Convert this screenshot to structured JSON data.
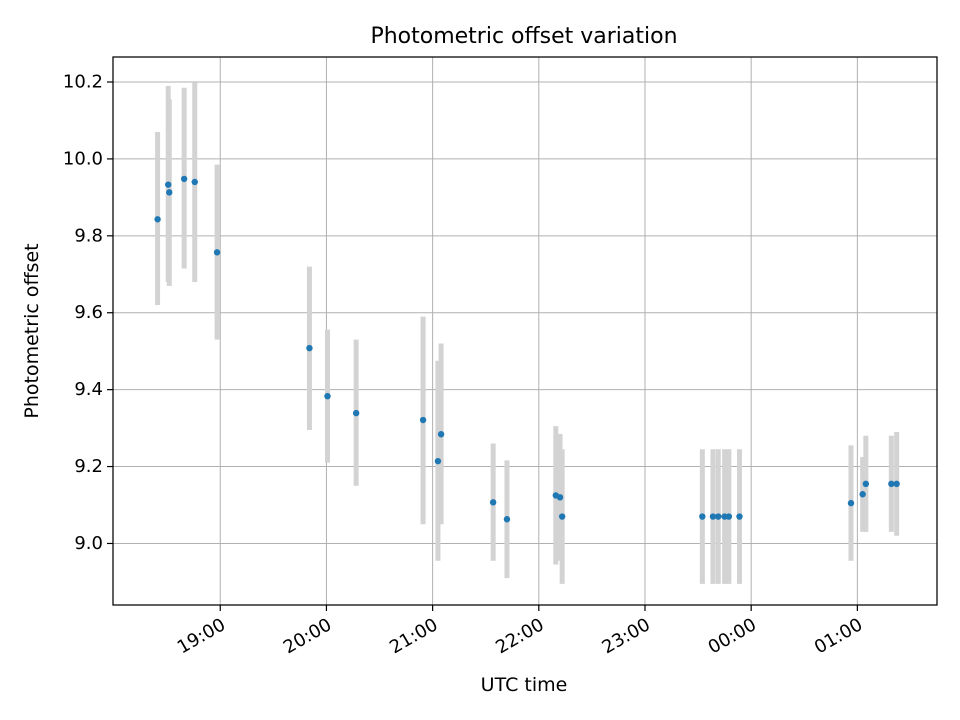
{
  "chart_data": {
    "type": "scatter",
    "title": "Photometric offset variation",
    "xlabel": "UTC time",
    "ylabel": "Photometric offset",
    "grid": true,
    "legend": "none",
    "x_unit": "UTC time of night (hours past 00:00 on the first day; values above 24 fall on the next day)",
    "xlim": [
      17.99,
      25.75
    ],
    "ylim": [
      8.84,
      10.265
    ],
    "x_ticks": [
      19,
      20,
      21,
      22,
      23,
      24,
      25
    ],
    "x_tick_labels": [
      "19:00",
      "20:00",
      "21:00",
      "22:00",
      "23:00",
      "00:00",
      "01:00"
    ],
    "y_ticks": [
      9.0,
      9.2,
      9.4,
      9.6,
      9.8,
      10.0,
      10.2
    ],
    "y_tick_labels": [
      "9.0",
      "9.2",
      "9.4",
      "9.6",
      "9.8",
      "10.0",
      "10.2"
    ],
    "colors": {
      "point": "#1f77b4",
      "errorbar": "#d3d3d3",
      "grid": "#b0b0b0"
    },
    "series": [
      {
        "points": [
          {
            "x": 18.41,
            "y": 9.843,
            "ylo": 9.62,
            "yhi": 10.07
          },
          {
            "x": 18.51,
            "y": 9.933,
            "ylo": 9.68,
            "yhi": 10.19
          },
          {
            "x": 18.52,
            "y": 9.913,
            "ylo": 9.67,
            "yhi": 10.155
          },
          {
            "x": 18.66,
            "y": 9.948,
            "ylo": 9.715,
            "yhi": 10.185
          },
          {
            "x": 18.76,
            "y": 9.94,
            "ylo": 9.68,
            "yhi": 10.198
          },
          {
            "x": 18.97,
            "y": 9.757,
            "ylo": 9.53,
            "yhi": 9.985
          },
          {
            "x": 19.84,
            "y": 9.508,
            "ylo": 9.295,
            "yhi": 9.72
          },
          {
            "x": 20.01,
            "y": 9.383,
            "ylo": 9.21,
            "yhi": 9.556
          },
          {
            "x": 20.28,
            "y": 9.339,
            "ylo": 9.15,
            "yhi": 9.53
          },
          {
            "x": 20.91,
            "y": 9.321,
            "ylo": 9.05,
            "yhi": 9.59
          },
          {
            "x": 21.05,
            "y": 9.214,
            "ylo": 8.955,
            "yhi": 9.475
          },
          {
            "x": 21.08,
            "y": 9.284,
            "ylo": 9.05,
            "yhi": 9.52
          },
          {
            "x": 21.57,
            "y": 9.107,
            "ylo": 8.955,
            "yhi": 9.26
          },
          {
            "x": 21.7,
            "y": 9.063,
            "ylo": 8.91,
            "yhi": 9.216
          },
          {
            "x": 22.16,
            "y": 9.125,
            "ylo": 8.945,
            "yhi": 9.305
          },
          {
            "x": 22.2,
            "y": 9.12,
            "ylo": 8.955,
            "yhi": 9.285
          },
          {
            "x": 22.22,
            "y": 9.07,
            "ylo": 8.895,
            "yhi": 9.245
          },
          {
            "x": 23.54,
            "y": 9.07,
            "ylo": 8.895,
            "yhi": 9.245
          },
          {
            "x": 23.64,
            "y": 9.07,
            "ylo": 8.895,
            "yhi": 9.245
          },
          {
            "x": 23.69,
            "y": 9.07,
            "ylo": 8.895,
            "yhi": 9.245
          },
          {
            "x": 23.75,
            "y": 9.07,
            "ylo": 8.895,
            "yhi": 9.245
          },
          {
            "x": 23.79,
            "y": 9.07,
            "ylo": 8.895,
            "yhi": 9.245
          },
          {
            "x": 23.89,
            "y": 9.07,
            "ylo": 8.895,
            "yhi": 9.245
          },
          {
            "x": 24.94,
            "y": 9.105,
            "ylo": 8.955,
            "yhi": 9.255
          },
          {
            "x": 25.05,
            "y": 9.128,
            "ylo": 9.03,
            "yhi": 9.225
          },
          {
            "x": 25.08,
            "y": 9.155,
            "ylo": 9.03,
            "yhi": 9.28
          },
          {
            "x": 25.32,
            "y": 9.155,
            "ylo": 9.03,
            "yhi": 9.28
          },
          {
            "x": 25.37,
            "y": 9.155,
            "ylo": 9.02,
            "yhi": 9.29
          }
        ]
      }
    ]
  }
}
